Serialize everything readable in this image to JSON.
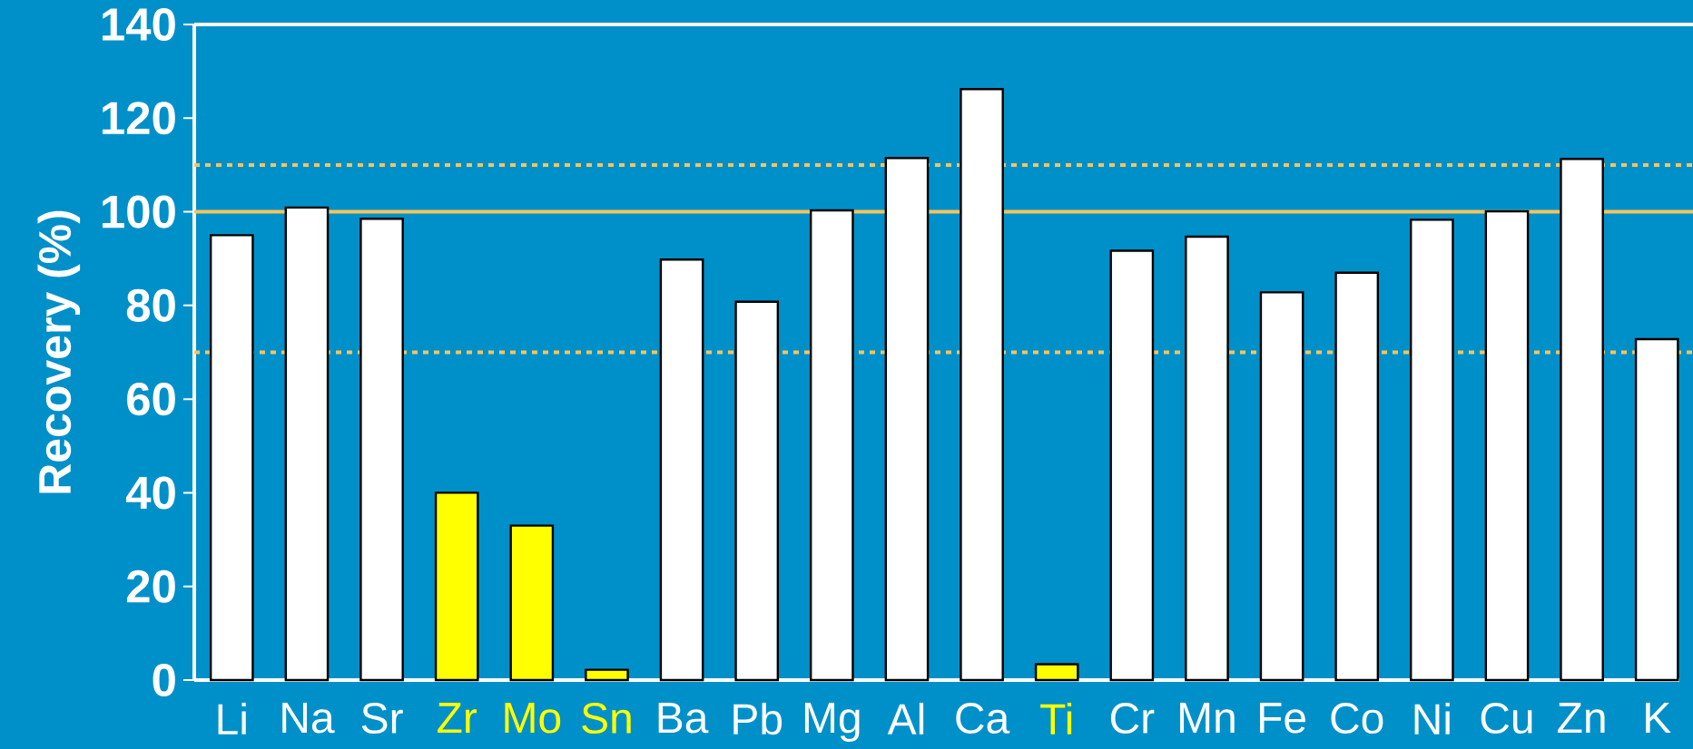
{
  "chart_data": {
    "type": "bar",
    "ylabel": "Recovery (%)",
    "categories": [
      "Li",
      "Na",
      "Sr",
      "Zr",
      "Mo",
      "Sn",
      "Ba",
      "Pb",
      "Mg",
      "Al",
      "Ca",
      "Ti",
      "Cr",
      "Mn",
      "Fe",
      "Co",
      "Ni",
      "Cu",
      "Zn",
      "K"
    ],
    "values": [
      95.0,
      100.9,
      98.5,
      40.0,
      33.0,
      2.2,
      89.8,
      80.8,
      100.3,
      111.5,
      126.2,
      3.4,
      91.7,
      94.7,
      82.8,
      87.0,
      98.3,
      100.1,
      111.3,
      72.8
    ],
    "colors": [
      "#ffffff",
      "#ffffff",
      "#ffffff",
      "#ffff00",
      "#ffff00",
      "#ffff00",
      "#ffffff",
      "#ffffff",
      "#ffffff",
      "#ffffff",
      "#ffffff",
      "#ffff00",
      "#ffffff",
      "#ffffff",
      "#ffffff",
      "#ffffff",
      "#ffffff",
      "#ffffff",
      "#ffffff",
      "#ffffff"
    ],
    "ylim": [
      0,
      140
    ],
    "yticks": [
      0,
      20,
      40,
      60,
      80,
      100,
      120,
      140
    ],
    "ref_lines": [
      {
        "axis": "y",
        "value": 100,
        "color": "#f5c45e",
        "line_style": "solid"
      },
      {
        "axis": "y",
        "value": 110,
        "color": "#f5c45e",
        "line_style": "dotted"
      },
      {
        "axis": "y",
        "value": 70,
        "color": "#f5c45e",
        "line_style": "dotted"
      }
    ],
    "grid": false
  }
}
